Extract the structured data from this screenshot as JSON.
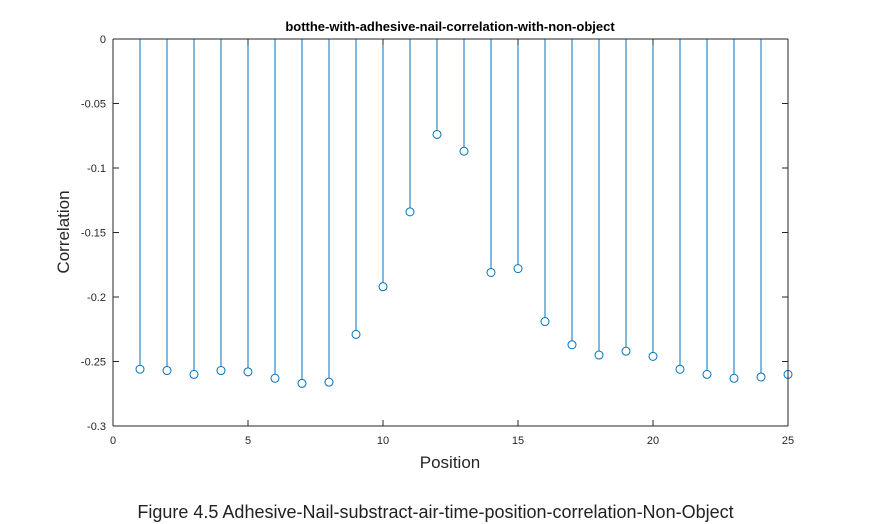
{
  "chart_data": {
    "type": "stem",
    "title": "botthe-with-adhesive-nail-correlation-with-non-object",
    "xlabel": "Position",
    "ylabel": "Correlation",
    "xlim": [
      0,
      25
    ],
    "ylim": [
      -0.3,
      0
    ],
    "xticks": [
      "0",
      "5",
      "10",
      "15",
      "20",
      "25"
    ],
    "yticks": [
      "0",
      "-0.05",
      "-0.1",
      "-0.15",
      "-0.2",
      "-0.25",
      "-0.3"
    ],
    "xtick_values": [
      0,
      5,
      10,
      15,
      20,
      25
    ],
    "ytick_values": [
      0,
      -0.05,
      -0.1,
      -0.15,
      -0.2,
      -0.25,
      -0.3
    ],
    "grid": false,
    "marker": "circle",
    "color": "#0072BD",
    "x": [
      1,
      2,
      3,
      4,
      5,
      6,
      7,
      8,
      9,
      10,
      11,
      12,
      13,
      14,
      15,
      16,
      17,
      18,
      19,
      20,
      21,
      22,
      23,
      24,
      25
    ],
    "y": [
      -0.256,
      -0.257,
      -0.26,
      -0.257,
      -0.258,
      -0.263,
      -0.267,
      -0.266,
      -0.229,
      -0.192,
      -0.134,
      -0.074,
      -0.087,
      -0.181,
      -0.178,
      -0.219,
      -0.237,
      -0.245,
      -0.242,
      -0.246,
      -0.256,
      -0.26,
      -0.263,
      -0.262,
      -0.26
    ]
  },
  "caption": "Figure 4.5 Adhesive-Nail-substract-air-time-position-correlation-Non-Object"
}
